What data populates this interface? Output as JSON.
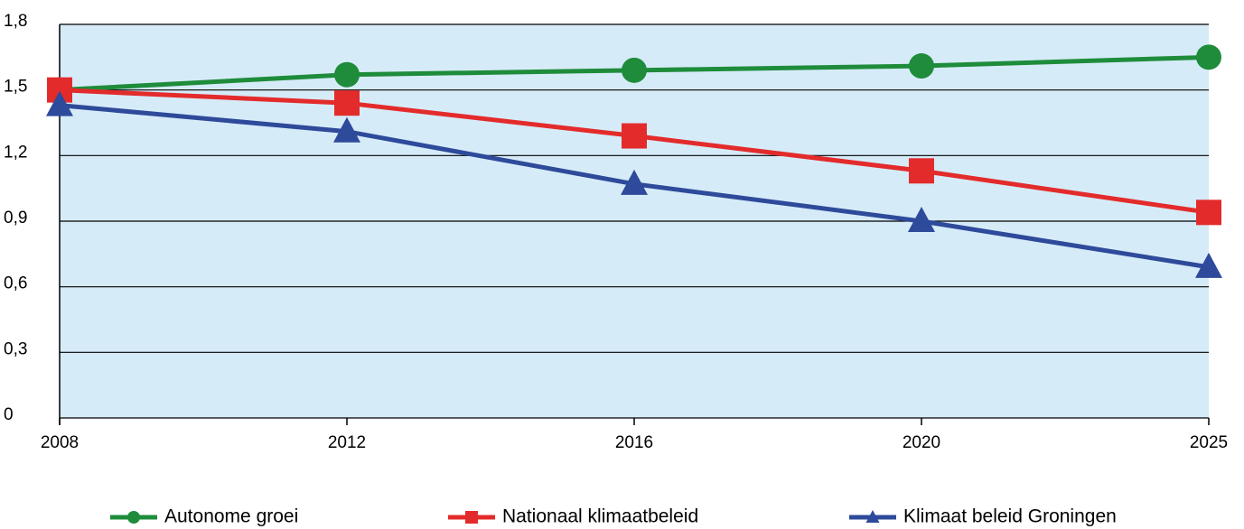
{
  "chart_data": {
    "type": "line",
    "categories": [
      "2008",
      "2012",
      "2016",
      "2020",
      "2025"
    ],
    "series": [
      {
        "name": "Autonome groei",
        "color": "#1e8c3a",
        "marker": "circle",
        "values": [
          1.5,
          1.57,
          1.59,
          1.61,
          1.65
        ]
      },
      {
        "name": "Nationaal klimaatbeleid",
        "color": "#e32b2b",
        "marker": "square",
        "values": [
          1.5,
          1.44,
          1.29,
          1.13,
          0.94
        ]
      },
      {
        "name": "Klimaat beleid Groningen",
        "color": "#2e4a9a",
        "marker": "triangle",
        "values": [
          1.43,
          1.31,
          1.07,
          0.9,
          0.69
        ]
      }
    ],
    "ylim": [
      0,
      1.8
    ],
    "yticks": [
      0,
      {
        "value": 0.3,
        "label": "0,3"
      },
      {
        "value": 0.6,
        "label": "0,6"
      },
      {
        "value": 0.9,
        "label": "0,9"
      },
      {
        "value": 1.2,
        "label": "1,2"
      },
      {
        "value": 1.5,
        "label": "1,5"
      },
      {
        "value": 1.8,
        "label": "1,8"
      }
    ],
    "grid": true,
    "plot_background": "#d6ebf8",
    "legend": "bottom"
  }
}
